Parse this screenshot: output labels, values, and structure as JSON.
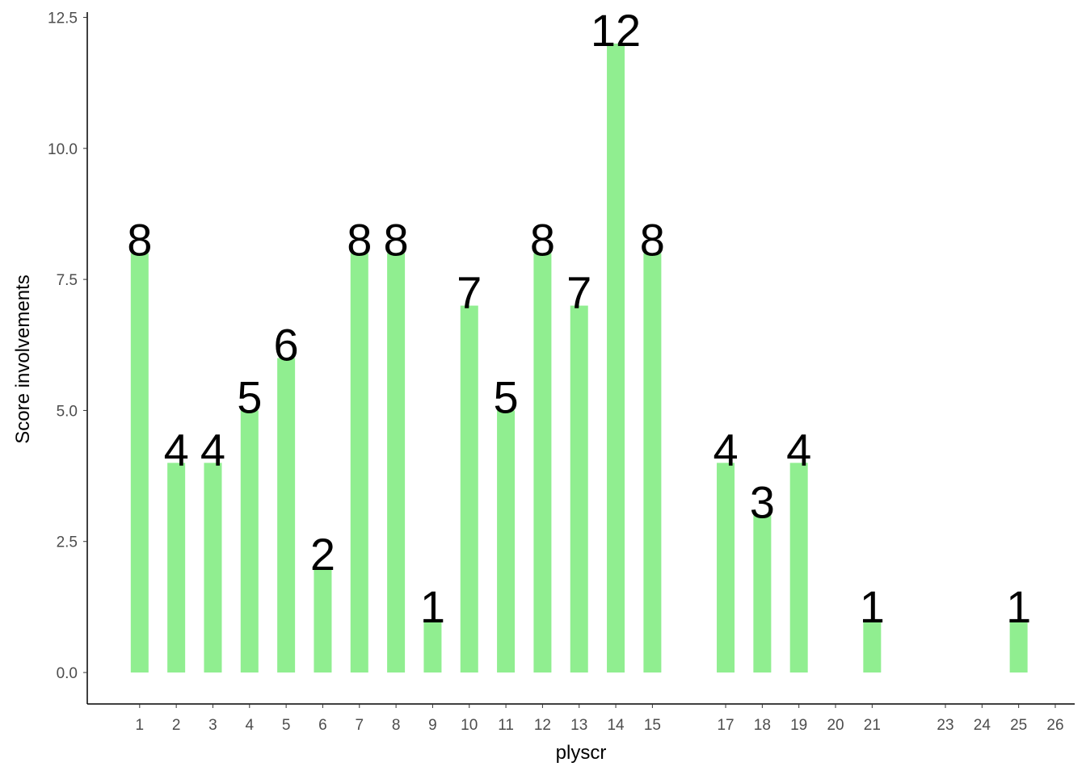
{
  "chart_data": {
    "type": "bar",
    "x_label": "plyscr",
    "y_label": "Score involvements",
    "x": [
      1,
      2,
      3,
      4,
      5,
      6,
      7,
      8,
      9,
      10,
      11,
      12,
      13,
      14,
      15,
      17,
      18,
      19,
      21,
      25
    ],
    "values": [
      8,
      4,
      4,
      5,
      6,
      2,
      8,
      8,
      1,
      7,
      5,
      8,
      7,
      12,
      8,
      4,
      3,
      4,
      1,
      1
    ],
    "color": "#90ee90",
    "xlim": [
      -0.43,
      26.53
    ],
    "xticks": [
      1,
      2,
      3,
      4,
      5,
      6,
      7,
      8,
      9,
      10,
      11,
      12,
      13,
      14,
      15,
      17,
      18,
      19,
      20,
      21,
      23,
      24,
      25,
      26
    ],
    "ylim": [
      -0.6,
      12.6
    ],
    "yticks": [
      {
        "value": 0,
        "label": "0.0"
      },
      2.5,
      {
        "value": 5,
        "label": "5.0"
      },
      7.5,
      {
        "value": 10,
        "label": "10.0"
      },
      12.5
    ],
    "grid": false
  }
}
